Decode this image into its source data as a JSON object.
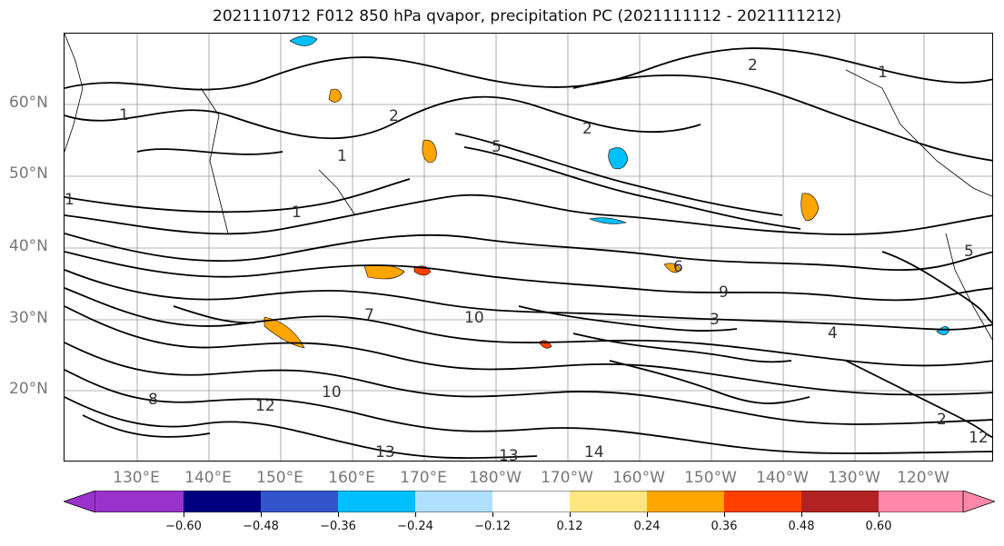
{
  "title": "2021110712 F012 850 hPa qvapor, precipitation PC (2021111112 - 2021111212)",
  "map": {
    "lat_labels": [
      "60°N",
      "50°N",
      "40°N",
      "30°N",
      "20°N"
    ],
    "lon_labels": [
      "130°E",
      "140°E",
      "150°E",
      "160°E",
      "170°E",
      "180°W",
      "170°W",
      "160°W",
      "150°W",
      "140°W",
      "130°W",
      "120°W"
    ],
    "contour_labels": [
      "1",
      "2",
      "1",
      "2",
      "1",
      "2",
      "1",
      "5",
      "1",
      "6",
      "7",
      "9",
      "10",
      "12",
      "13",
      "13",
      "14",
      "8",
      "12",
      "10",
      "5",
      "4",
      "3",
      "2"
    ],
    "line_color": "#000000"
  },
  "colorbar": {
    "colors": [
      "#9933cc",
      "#000080",
      "#3355cc",
      "#00bfff",
      "#b0e0ff",
      "#ffffff",
      "#ffe680",
      "#ffa500",
      "#ff4000",
      "#b22222",
      "#ff88aa"
    ],
    "tick_labels": [
      "−0.60",
      "−0.48",
      "−0.36",
      "−0.24",
      "−0.12",
      "0.12",
      "0.24",
      "0.36",
      "0.48",
      "0.60"
    ]
  }
}
